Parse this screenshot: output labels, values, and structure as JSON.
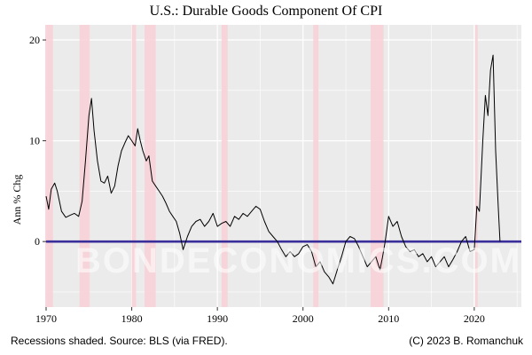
{
  "chart_data": {
    "type": "line",
    "title": "U.S.: Durable Goods Component Of CPI",
    "ylabel": "Ann % Chg",
    "xlabel": "",
    "xlim": [
      1970,
      2025.5
    ],
    "ylim": [
      -6.5,
      21.5
    ],
    "x_ticks": [
      1970,
      1980,
      1990,
      2000,
      2010,
      2020
    ],
    "y_ticks": [
      0,
      10,
      20
    ],
    "grid": true,
    "zero_line": {
      "value": 0,
      "color": "#3a2f9a"
    },
    "recessions": [
      [
        1969.9,
        1970.8
      ],
      [
        1973.9,
        1975.1
      ],
      [
        1980.0,
        1980.5
      ],
      [
        1981.5,
        1982.8
      ],
      [
        1990.5,
        1991.2
      ],
      [
        2001.2,
        2001.8
      ],
      [
        2007.9,
        2009.4
      ],
      [
        2020.1,
        2020.4
      ]
    ],
    "series": [
      {
        "color": "#000000",
        "x": [
          1970.0,
          1970.3,
          1970.6,
          1971.0,
          1971.3,
          1971.8,
          1972.3,
          1972.8,
          1973.3,
          1973.8,
          1974.2,
          1974.6,
          1975.0,
          1975.3,
          1975.6,
          1976.0,
          1976.4,
          1976.8,
          1977.2,
          1977.6,
          1978.0,
          1978.4,
          1978.8,
          1979.2,
          1979.6,
          1980.0,
          1980.4,
          1980.7,
          1981.0,
          1981.3,
          1981.7,
          1982.0,
          1982.4,
          1982.8,
          1983.2,
          1983.6,
          1984.0,
          1984.4,
          1984.8,
          1985.2,
          1985.6,
          1986.0,
          1986.5,
          1987.0,
          1987.5,
          1988.0,
          1988.5,
          1989.0,
          1989.5,
          1990.0,
          1990.5,
          1991.0,
          1991.5,
          1992.0,
          1992.5,
          1993.0,
          1993.5,
          1994.0,
          1994.5,
          1995.0,
          1995.5,
          1996.0,
          1996.5,
          1997.0,
          1997.5,
          1998.0,
          1998.5,
          1999.0,
          1999.5,
          2000.0,
          2000.5,
          2001.0,
          2001.5,
          2002.0,
          2002.5,
          2003.0,
          2003.5,
          2004.0,
          2004.5,
          2005.0,
          2005.5,
          2006.0,
          2006.5,
          2007.0,
          2007.5,
          2008.0,
          2008.5,
          2009.0,
          2009.3,
          2009.6,
          2010.0,
          2010.5,
          2011.0,
          2011.5,
          2012.0,
          2012.5,
          2013.0,
          2013.5,
          2014.0,
          2014.5,
          2015.0,
          2015.5,
          2016.0,
          2016.5,
          2017.0,
          2017.5,
          2018.0,
          2018.5,
          2019.0,
          2019.5,
          2020.0,
          2020.3,
          2020.6,
          2021.0,
          2021.3,
          2021.6,
          2021.9,
          2022.2,
          2022.5,
          2022.8,
          2023.0
        ],
        "values": [
          4.5,
          3.2,
          5.2,
          5.8,
          5.0,
          3.0,
          2.4,
          2.6,
          2.8,
          2.5,
          4.0,
          8.0,
          12.5,
          14.2,
          11.0,
          8.0,
          6.0,
          5.8,
          6.5,
          4.8,
          5.5,
          7.5,
          9.0,
          9.8,
          10.5,
          10.0,
          9.5,
          11.2,
          10.0,
          9.0,
          8.0,
          8.5,
          6.0,
          5.5,
          5.0,
          4.5,
          3.8,
          3.0,
          2.5,
          2.0,
          0.8,
          -0.8,
          0.5,
          1.5,
          2.0,
          2.2,
          1.5,
          2.0,
          2.8,
          1.5,
          1.8,
          2.0,
          1.5,
          2.5,
          2.2,
          2.8,
          2.5,
          3.0,
          3.5,
          3.2,
          2.0,
          1.0,
          0.5,
          0.0,
          -0.8,
          -1.5,
          -1.0,
          -1.5,
          -1.2,
          -0.5,
          -0.3,
          -1.0,
          -2.5,
          -2.0,
          -3.0,
          -3.5,
          -4.2,
          -2.8,
          -1.5,
          0.0,
          0.5,
          0.3,
          -0.5,
          -1.5,
          -2.5,
          -2.0,
          -1.5,
          -2.8,
          -1.5,
          0.0,
          2.5,
          1.5,
          2.0,
          0.5,
          -0.5,
          -1.0,
          -0.8,
          -1.5,
          -1.2,
          -2.0,
          -1.5,
          -2.5,
          -2.0,
          -1.5,
          -2.5,
          -1.8,
          -1.0,
          0.0,
          0.5,
          -1.0,
          -0.8,
          3.5,
          3.0,
          10.0,
          14.5,
          12.5,
          17.0,
          18.5,
          9.0,
          3.5,
          0.0
        ]
      }
    ],
    "footer_left": "Recessions shaded. Source: BLS (via FRED).",
    "footer_right": "(C) 2023 B. Romanchuk",
    "watermark": "BONDECONOMICS.COM",
    "colors": {
      "panel": "#ebebeb",
      "grid": "#ffffff",
      "recession": "#f7d1d8",
      "line": "#000000",
      "zero": "#3a2f9a"
    }
  }
}
